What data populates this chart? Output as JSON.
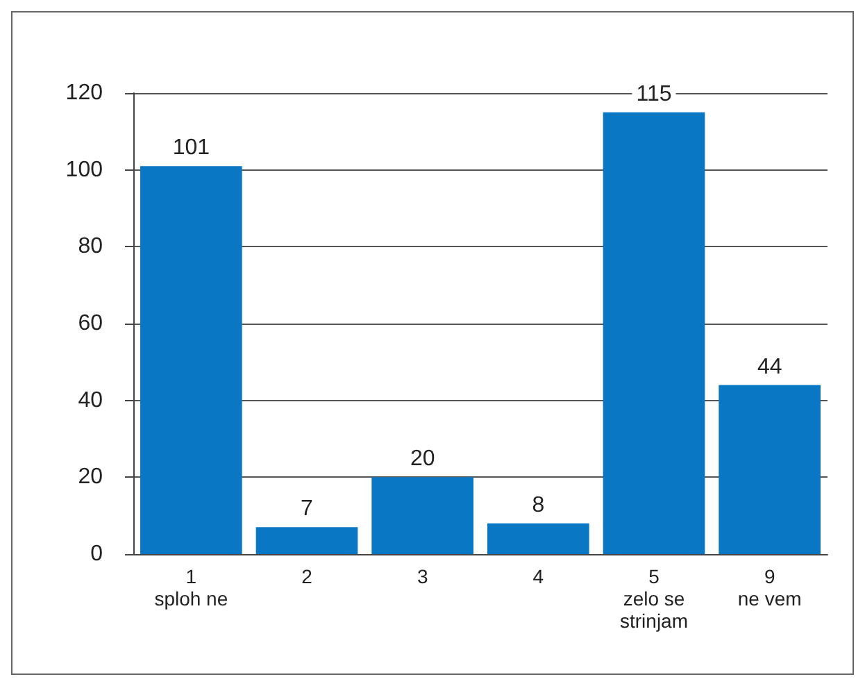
{
  "chart_data": {
    "type": "bar",
    "categories": [
      "1\nsploh ne",
      "2",
      "3",
      "4",
      "5\nzelo se\nstrinjam",
      "9\nne vem"
    ],
    "values": [
      101,
      7,
      20,
      8,
      115,
      44
    ],
    "color": "#0a77c4",
    "ylim": [
      0,
      120
    ],
    "yticks": [
      0,
      20,
      40,
      60,
      80,
      100,
      120
    ],
    "grid": "y",
    "data_labels": true
  }
}
